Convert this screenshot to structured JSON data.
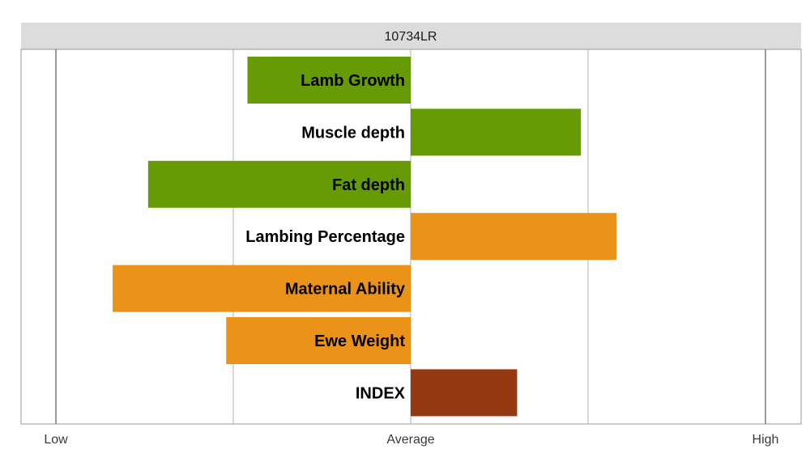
{
  "chart_data": {
    "type": "bar",
    "orientation": "horizontal",
    "title": "10734LR",
    "xlim": [
      -1,
      1
    ],
    "ticks": [
      {
        "value": -1,
        "label": "Low"
      },
      {
        "value": 0,
        "label": "Average"
      },
      {
        "value": 1,
        "label": "High"
      }
    ],
    "gridlines": [
      -1,
      -0.5,
      0,
      0.5,
      1
    ],
    "categories": [
      "Lamb Growth",
      "Muscle depth",
      "Fat depth",
      "Lambing Percentage",
      "Maternal Ability",
      "Ewe Weight",
      "INDEX"
    ],
    "values": [
      -0.46,
      0.48,
      -0.74,
      0.58,
      -0.84,
      -0.52,
      0.3
    ],
    "colors": [
      "#669b05",
      "#669b05",
      "#669b05",
      "#eb9219",
      "#eb9219",
      "#eb9219",
      "#953913"
    ]
  },
  "colors": {
    "title_band": "#dcdcdc",
    "frame": "#9a9a9a",
    "gridline_outer": "#7a7a7a",
    "gridline_inner": "#b0b0b0"
  }
}
